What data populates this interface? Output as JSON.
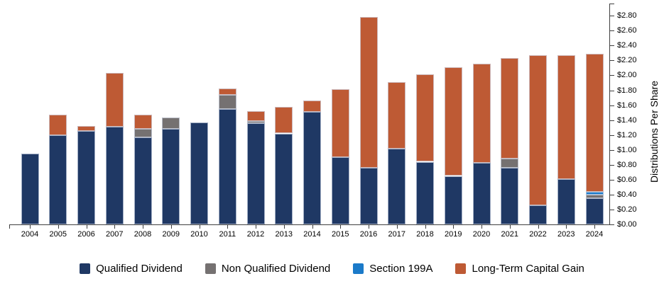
{
  "chart_data": {
    "type": "bar",
    "stacked": true,
    "title": "",
    "xlabel": "",
    "ylabel": "Distributions Per Share",
    "ylim": [
      0,
      2.8
    ],
    "ytick_step": 0.2,
    "ytick_labels": [
      "$0.00",
      "$0.20",
      "$0.40",
      "$0.60",
      "$0.80",
      "$1.00",
      "$1.20",
      "$1.40",
      "$1.60",
      "$1.80",
      "$2.00",
      "$2.20",
      "$2.40",
      "$2.60",
      "$2.80"
    ],
    "grid": false,
    "legend_position": "bottom",
    "y_axis_side": "right",
    "categories": [
      "2004",
      "2005",
      "2006",
      "2007",
      "2008",
      "2009",
      "2010",
      "2011",
      "2012",
      "2013",
      "2014",
      "2015",
      "2016",
      "2017",
      "2018",
      "2019",
      "2020",
      "2021",
      "2022",
      "2023",
      "2024"
    ],
    "series": [
      {
        "name": "Qualified Dividend",
        "color": "#1F3864",
        "values": [
          0.95,
          1.2,
          1.25,
          1.31,
          1.17,
          1.28,
          1.37,
          1.55,
          1.36,
          1.22,
          1.51,
          0.9,
          0.76,
          1.02,
          0.84,
          0.65,
          0.83,
          0.76,
          0.26,
          0.61,
          0.35
        ]
      },
      {
        "name": "Non Qualified Dividend",
        "color": "#757171",
        "values": [
          0,
          0,
          0,
          0,
          0.11,
          0.15,
          0,
          0.19,
          0.03,
          0,
          0,
          0,
          0,
          0,
          0,
          0,
          0,
          0.12,
          0,
          0,
          0.05
        ]
      },
      {
        "name": "Section 199A",
        "color": "#1B7AC9",
        "values": [
          0,
          0,
          0,
          0,
          0,
          0,
          0,
          0,
          0,
          0,
          0,
          0,
          0,
          0,
          0,
          0,
          0,
          0,
          0,
          0,
          0.04
        ]
      },
      {
        "name": "Long-Term Capital Gain",
        "color": "#BE5A34",
        "values": [
          0,
          0.27,
          0.07,
          0.72,
          0.19,
          0,
          0,
          0.08,
          0.13,
          0.36,
          0.15,
          0.91,
          2.02,
          0.89,
          1.17,
          1.46,
          1.33,
          1.35,
          2.01,
          1.66,
          1.85
        ]
      }
    ]
  }
}
